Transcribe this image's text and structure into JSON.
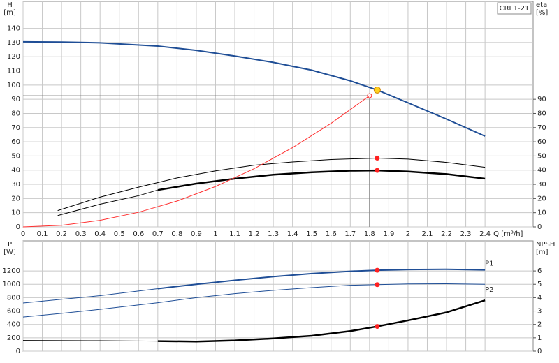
{
  "chart_data": [
    {
      "type": "line",
      "box_label": "CRI 1-21",
      "ylabel": "H",
      "ylabel_unit": "[m]",
      "y2label": "eta",
      "y2label_unit": "[%]",
      "xlabel": "Q [m³/h]",
      "xlim": [
        0,
        2.65
      ],
      "xticks": [
        0,
        0.1,
        0.2,
        0.3,
        0.4,
        0.5,
        0.6,
        0.7,
        0.8,
        0.9,
        1.0,
        1.1,
        1.2,
        1.3,
        1.4,
        1.5,
        1.6,
        1.7,
        1.8,
        1.9,
        2.0,
        2.1,
        2.2,
        2.3,
        2.4
      ],
      "ylim": [
        0,
        159
      ],
      "yticks": [
        0,
        10,
        20,
        30,
        40,
        50,
        60,
        70,
        80,
        90,
        100,
        110,
        120,
        130,
        140
      ],
      "y2lim": [
        0,
        159
      ],
      "y2ticks": [
        0,
        10,
        20,
        30,
        40,
        50,
        60,
        70,
        80,
        90
      ],
      "grid": true,
      "series": [
        {
          "color": "#1f4e96",
          "width": 2,
          "x": [
            0,
            0.2,
            0.4,
            0.7,
            0.9,
            1.1,
            1.3,
            1.5,
            1.7,
            1.84,
            2.0,
            2.2,
            2.4
          ],
          "values": [
            130.5,
            130.3,
            129.8,
            127.5,
            124.5,
            120.5,
            116,
            110.5,
            103,
            96.5,
            87.5,
            76,
            64
          ]
        },
        {
          "color": "#000000",
          "width": 1,
          "axis": "y2",
          "x": [
            0.18,
            0.4,
            0.6,
            0.8,
            1.0,
            1.2,
            1.4,
            1.6,
            1.84,
            2.0,
            2.2,
            2.4
          ],
          "values": [
            11.5,
            21,
            28,
            34.5,
            39.5,
            43.5,
            45.8,
            47.5,
            48.5,
            47.8,
            45.5,
            42
          ]
        },
        {
          "color": "#000000",
          "width": 1,
          "axis": "y2",
          "x": [
            0.18,
            0.4,
            0.6,
            0.7
          ],
          "values": [
            8,
            16,
            22,
            26
          ]
        },
        {
          "color": "#000000",
          "width": 2.5,
          "axis": "y2",
          "x": [
            0.7,
            0.9,
            1.1,
            1.3,
            1.5,
            1.7,
            1.84,
            2.0,
            2.2,
            2.4
          ],
          "values": [
            26,
            30.5,
            34,
            36.8,
            38.5,
            39.6,
            39.8,
            39,
            37.2,
            34
          ]
        },
        {
          "color": "#ff3030",
          "width": 1,
          "x": [
            0,
            0.2,
            0.4,
            0.6,
            0.8,
            1.0,
            1.2,
            1.4,
            1.6,
            1.8
          ],
          "values": [
            0,
            1.1,
            4.6,
            10.3,
            18.2,
            28.5,
            41,
            55.9,
            73,
            92.5
          ]
        }
      ],
      "reference": {
        "x": 1.8,
        "y": 92.5
      },
      "markers": [
        {
          "x": 1.84,
          "y": 96.5,
          "color": "#ffd21f"
        },
        {
          "x": 1.84,
          "y": 48.5,
          "color": "#ff2020"
        },
        {
          "x": 1.84,
          "y": 39.8,
          "color": "#ff2020"
        }
      ]
    },
    {
      "type": "line",
      "ylabel": "P",
      "ylabel_unit": "[W]",
      "y2label": "NPSH",
      "y2label_unit": "[m]",
      "xlim": [
        0,
        2.65
      ],
      "ylim": [
        0,
        1650
      ],
      "yticks": [
        0,
        200,
        400,
        600,
        800,
        1000,
        1200
      ],
      "y2lim": [
        0,
        8.25
      ],
      "y2ticks": [
        0,
        1,
        2,
        3,
        4,
        5,
        6
      ],
      "grid": true,
      "series": [
        {
          "color": "#1f4e96",
          "width": 1,
          "x": [
            0,
            0.2,
            0.4,
            0.7
          ],
          "values": [
            720,
            775,
            830,
            935
          ]
        },
        {
          "name": "P1",
          "color": "#1f4e96",
          "width": 2,
          "x": [
            0.7,
            0.9,
            1.1,
            1.3,
            1.5,
            1.7,
            1.84,
            2.0,
            2.2,
            2.4
          ],
          "values": [
            935,
            1000,
            1060,
            1115,
            1160,
            1195,
            1210,
            1220,
            1225,
            1215
          ]
        },
        {
          "name": "P2",
          "color": "#1f4e96",
          "width": 1,
          "x": [
            0,
            0.2,
            0.4,
            0.7,
            0.9,
            1.1,
            1.3,
            1.5,
            1.7,
            1.84,
            2.0,
            2.2,
            2.4
          ],
          "values": [
            510,
            565,
            625,
            725,
            800,
            860,
            910,
            950,
            985,
            995,
            1005,
            1008,
            1000
          ]
        },
        {
          "color": "#000000",
          "width": 1,
          "axis": "y2",
          "x": [
            0,
            0.4,
            0.7
          ],
          "values": [
            0.8,
            0.78,
            0.75
          ]
        },
        {
          "color": "#000000",
          "width": 2.5,
          "axis": "y2",
          "x": [
            0.7,
            0.9,
            1.1,
            1.3,
            1.5,
            1.7,
            1.84,
            2.0,
            2.2,
            2.4
          ],
          "values": [
            0.75,
            0.72,
            0.8,
            0.95,
            1.15,
            1.5,
            1.85,
            2.3,
            2.9,
            3.8
          ]
        }
      ],
      "markers": [
        {
          "x": 1.84,
          "y": 1210,
          "color": "#ff2020"
        },
        {
          "x": 1.84,
          "y": 995,
          "color": "#ff2020"
        },
        {
          "x": 1.84,
          "y": 1.85,
          "color": "#ff2020",
          "axis": "y2"
        }
      ]
    }
  ]
}
